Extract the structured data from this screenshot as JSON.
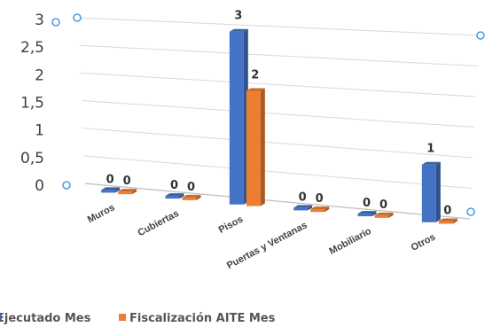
{
  "chart_data": {
    "type": "bar",
    "title": "",
    "xlabel": "",
    "ylabel": "",
    "ylim": [
      0,
      3
    ],
    "yticks": [
      "0",
      "0,5",
      "1",
      "1,5",
      "2",
      "2,5",
      "3"
    ],
    "categories": [
      "Muros",
      "Cubiertas",
      "Pisos",
      "Puertas y Ventanas",
      "Mobiliario",
      "Otros"
    ],
    "series": [
      {
        "name": "Ejecutado Mes",
        "values": [
          0,
          0,
          3,
          0,
          0,
          1
        ],
        "color": "#4472c4"
      },
      {
        "name": "Fiscalización AITE Mes",
        "values": [
          0,
          0,
          2,
          0,
          0,
          0
        ],
        "color": "#ed7d31"
      }
    ],
    "grid": true,
    "legend": "bottom",
    "style": "3d-perspective"
  }
}
